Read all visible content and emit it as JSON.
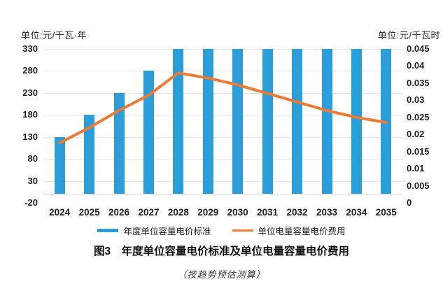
{
  "figure": {
    "title": "图3　年度单位容量电价标准及单位电量容量电价费用",
    "subtitle": "（按趋势预估测算）",
    "legend": [
      {
        "label": "年度单位容量电价标准",
        "type": "bar",
        "color": "#2b9dd8"
      },
      {
        "label": "单位电量容量电价费用",
        "type": "line",
        "color": "#ec7a33"
      }
    ]
  },
  "chart_data": {
    "type": "bar+line combo, dual y-axes",
    "categories": [
      "2024",
      "2025",
      "2026",
      "2027",
      "2028",
      "2029",
      "2030",
      "2031",
      "2032",
      "2033",
      "2034",
      "2035"
    ],
    "series": [
      {
        "name": "年度单位容量电价标准",
        "type": "bar",
        "axis": "left",
        "color": "#2b9dd8",
        "values": [
          130,
          180,
          230,
          280,
          330,
          330,
          330,
          330,
          330,
          330,
          330,
          330
        ]
      },
      {
        "name": "单位电量容量电价费用",
        "type": "line",
        "axis": "right",
        "color": "#ec7a33",
        "values": [
          0.0175,
          0.022,
          0.027,
          0.0315,
          0.038,
          0.0365,
          0.0345,
          0.032,
          0.0295,
          0.027,
          0.025,
          0.0235
        ]
      }
    ],
    "left_axis": {
      "unit": "单位:元/千瓦·年",
      "min": -20,
      "max": 330,
      "step": 50,
      "tick_labels": [
        "330",
        "280",
        "230",
        "180",
        "130",
        "80",
        "30",
        "-20"
      ]
    },
    "right_axis": {
      "unit": "单位:元/千瓦时",
      "min": 0,
      "max": 0.045,
      "step": 0.005,
      "tick_labels": [
        "0.045",
        "0.04",
        "0.035",
        "0.03",
        "0.025",
        "0.02",
        "0.015",
        "0.01",
        "0.005",
        "0"
      ]
    },
    "grid": true,
    "legend_position": "bottom",
    "bar_baseline_value": 0
  }
}
